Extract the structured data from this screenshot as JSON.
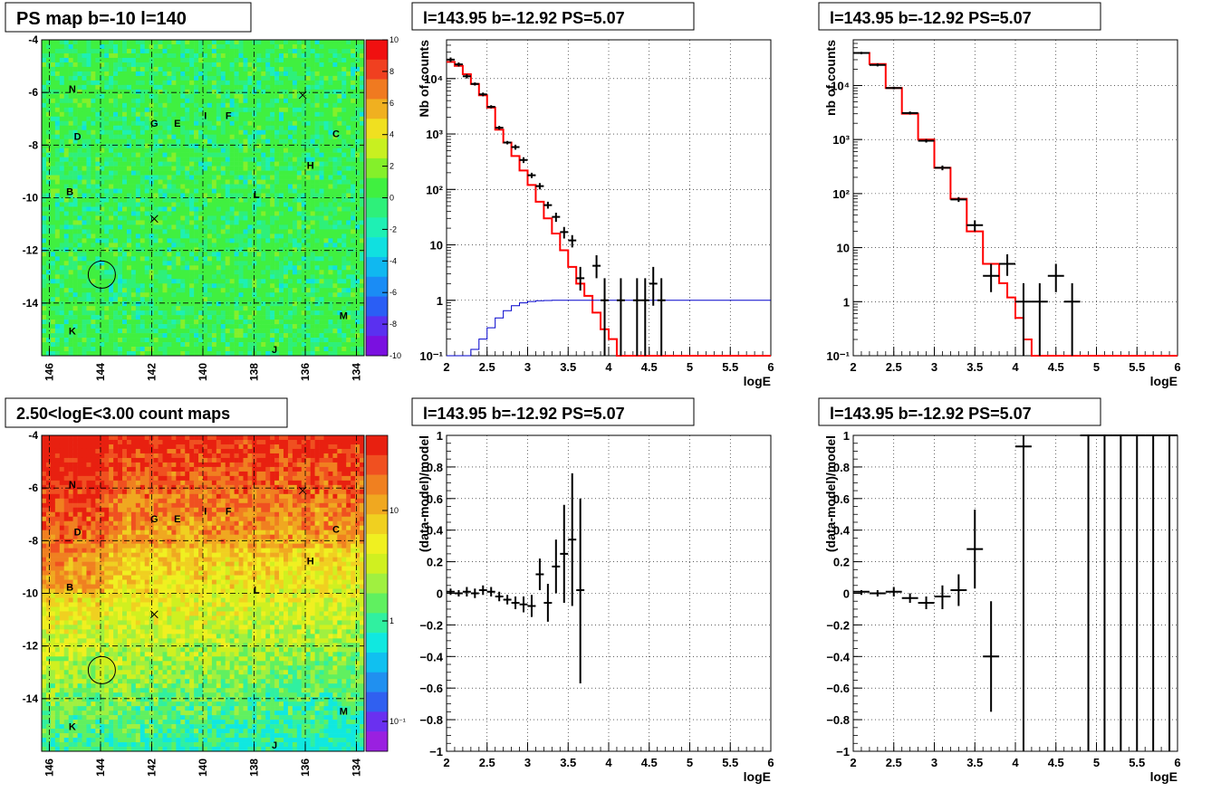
{
  "map_top": {
    "title": "PS map b=-10 l=140",
    "xticks": [
      146,
      144,
      142,
      140,
      138,
      136,
      134
    ],
    "yticks": [
      -4,
      -6,
      -8,
      -10,
      -12,
      -14
    ],
    "xlim": [
      146.3,
      133.7
    ],
    "ylim": [
      -16,
      -4
    ],
    "palette": "ps",
    "colorbar_ticks": [
      "10",
      "8",
      "6",
      "4",
      "2",
      "0",
      "-2",
      "-4",
      "-6",
      "-8",
      "-10"
    ],
    "labels": [
      {
        "t": "N",
        "l": 145.1,
        "b": -6.0
      },
      {
        "t": "D",
        "l": 144.9,
        "b": -7.8
      },
      {
        "t": "B",
        "l": 145.2,
        "b": -9.9
      },
      {
        "t": "K",
        "l": 145.1,
        "b": -15.2
      },
      {
        "t": "G",
        "l": 141.9,
        "b": -7.3
      },
      {
        "t": "E",
        "l": 141.0,
        "b": -7.3
      },
      {
        "t": "I",
        "l": 139.9,
        "b": -7.0
      },
      {
        "t": "F",
        "l": 139.0,
        "b": -7.0
      },
      {
        "t": "C",
        "l": 134.8,
        "b": -7.7
      },
      {
        "t": "H",
        "l": 135.8,
        "b": -8.9
      },
      {
        "t": "L",
        "l": 137.9,
        "b": -10.0
      },
      {
        "t": "M",
        "l": 134.5,
        "b": -14.6
      },
      {
        "t": "J",
        "l": 137.2,
        "b": -15.9
      }
    ],
    "crosses": [
      {
        "l": 136.1,
        "b": -6.1
      },
      {
        "l": 141.9,
        "b": -10.8
      }
    ],
    "circle": {
      "l": 143.95,
      "b": -12.92
    }
  },
  "map_bottom": {
    "title": "2.50<logE<3.00 count maps",
    "xticks": [
      146,
      144,
      142,
      140,
      138,
      136,
      134
    ],
    "yticks": [
      -4,
      -6,
      -8,
      -10,
      -12,
      -14
    ],
    "xlim": [
      146.3,
      133.7
    ],
    "ylim": [
      -16,
      -4
    ],
    "palette": "counts",
    "colorbar_ticks": [
      "10",
      "1",
      "10⁻¹"
    ],
    "labels": [
      {
        "t": "N",
        "l": 145.1,
        "b": -6.0
      },
      {
        "t": "D",
        "l": 144.9,
        "b": -7.8
      },
      {
        "t": "B",
        "l": 145.2,
        "b": -9.9
      },
      {
        "t": "K",
        "l": 145.1,
        "b": -15.2
      },
      {
        "t": "G",
        "l": 141.9,
        "b": -7.3
      },
      {
        "t": "E",
        "l": 141.0,
        "b": -7.3
      },
      {
        "t": "I",
        "l": 139.9,
        "b": -7.0
      },
      {
        "t": "F",
        "l": 139.0,
        "b": -7.0
      },
      {
        "t": "C",
        "l": 134.8,
        "b": -7.7
      },
      {
        "t": "H",
        "l": 135.8,
        "b": -8.9
      },
      {
        "t": "L",
        "l": 137.9,
        "b": -10.0
      },
      {
        "t": "M",
        "l": 134.5,
        "b": -14.6
      },
      {
        "t": "J",
        "l": 137.2,
        "b": -15.9
      }
    ],
    "crosses": [
      {
        "l": 136.1,
        "b": -6.1
      },
      {
        "l": 141.9,
        "b": -10.8
      }
    ],
    "circle": {
      "l": 143.95,
      "b": -12.92
    }
  },
  "chart_data": [
    {
      "type": "line",
      "title": "l=143.95 b=-12.92 PS=5.07",
      "xlabel": "logE",
      "ylabel": "Nb of counts",
      "log_y": true,
      "grid": true,
      "xlim": [
        2,
        6
      ],
      "ylim": [
        0.1,
        50000
      ],
      "xticks": [
        2,
        2.5,
        3,
        3.5,
        4,
        4.5,
        5,
        5.5,
        6
      ],
      "xtick_labels": [
        "2",
        "2.5",
        "3",
        "3.5",
        "4",
        "4.5",
        "5",
        "5.5",
        "6"
      ],
      "yticks": [
        0.1,
        1,
        10,
        100,
        1000,
        10000
      ],
      "ytick_labels": [
        "10⁻¹",
        "1",
        "10",
        "10²",
        "10³",
        "10⁴"
      ],
      "series": [
        {
          "style": "step",
          "color": "#ff0000",
          "edges": [
            2.0,
            2.1,
            2.2,
            2.3,
            2.4,
            2.5,
            2.6,
            2.7,
            2.8,
            2.9,
            3.0,
            3.1,
            3.2,
            3.3,
            3.4,
            3.5,
            3.6,
            3.7,
            3.8,
            3.9,
            4.0,
            4.1,
            4.2,
            6.0
          ],
          "values": [
            20000,
            17000,
            12000,
            8000,
            5000,
            3000,
            1200,
            700,
            400,
            220,
            120,
            60,
            30,
            16,
            8,
            4,
            2,
            1.2,
            0.6,
            0.3,
            0.2,
            0.1,
            0.1
          ]
        },
        {
          "style": "step",
          "color": "#0000cc",
          "edges": [
            2.0,
            2.3,
            2.4,
            2.5,
            2.6,
            2.7,
            2.8,
            2.9,
            3.0,
            3.1,
            3.2,
            3.3,
            6.0
          ],
          "values": [
            0.1,
            0.13,
            0.2,
            0.32,
            0.48,
            0.65,
            0.8,
            0.9,
            0.95,
            0.98,
            0.99,
            1.0
          ]
        },
        {
          "style": "points",
          "color": "#000000",
          "xerr": 0.05,
          "points": [
            [
              2.05,
              22000,
              20000,
              24000
            ],
            [
              2.15,
              18000,
              16500,
              19500
            ],
            [
              2.25,
              11000,
              10000,
              12000
            ],
            [
              2.35,
              8000,
              7500,
              8500
            ],
            [
              2.45,
              5200,
              4800,
              5600
            ],
            [
              2.55,
              3100,
              2900,
              3300
            ],
            [
              2.65,
              1300,
              1200,
              1400
            ],
            [
              2.75,
              700,
              650,
              750
            ],
            [
              2.85,
              580,
              520,
              640
            ],
            [
              2.95,
              340,
              300,
              380
            ],
            [
              3.05,
              180,
              160,
              200
            ],
            [
              3.15,
              115,
              100,
              130
            ],
            [
              3.25,
              52,
              45,
              60
            ],
            [
              3.35,
              32,
              26,
              38
            ],
            [
              3.45,
              17,
              13,
              21
            ],
            [
              3.55,
              12,
              9,
              15
            ],
            [
              3.65,
              2.5,
              1.5,
              4
            ],
            [
              3.85,
              4.2,
              2.5,
              6.5
            ],
            [
              3.95,
              1,
              0.1,
              2.5
            ],
            [
              4.15,
              1,
              0.1,
              2.5
            ],
            [
              4.35,
              1,
              0.1,
              2.5
            ],
            [
              4.45,
              1,
              0.1,
              2.5
            ],
            [
              4.55,
              2,
              0.8,
              4
            ],
            [
              4.65,
              1,
              0.1,
              2.5
            ]
          ]
        }
      ]
    },
    {
      "type": "line",
      "title": "l=143.95 b=-12.92 PS=5.07",
      "xlabel": "logE",
      "ylabel": "nb of counts",
      "log_y": true,
      "grid": true,
      "xlim": [
        2,
        6
      ],
      "ylim": [
        0.1,
        70000
      ],
      "xticks": [
        2,
        2.5,
        3,
        3.5,
        4,
        4.5,
        5,
        5.5,
        6
      ],
      "xtick_labels": [
        "2",
        "2.5",
        "3",
        "3.5",
        "4",
        "4.5",
        "5",
        "5.5",
        "6"
      ],
      "yticks": [
        0.1,
        1,
        10,
        100,
        1000,
        10000
      ],
      "ytick_labels": [
        "10⁻¹",
        "1",
        "10",
        "10²",
        "10³",
        "10⁴"
      ],
      "series": [
        {
          "style": "step",
          "color": "#ff0000",
          "edges": [
            2.0,
            2.2,
            2.4,
            2.6,
            2.8,
            3.0,
            3.2,
            3.4,
            3.6,
            3.8,
            3.9,
            4.0,
            4.1,
            4.2,
            6.0
          ],
          "values": [
            40000,
            25000,
            9000,
            3000,
            1000,
            300,
            80,
            20,
            5,
            2.2,
            1.2,
            0.5,
            0.2,
            0.1
          ]
        },
        {
          "style": "points",
          "color": "#000000",
          "xerr": 0.1,
          "points": [
            [
              2.1,
              40000,
              38000,
              42000
            ],
            [
              2.3,
              24000,
              22500,
              25500
            ],
            [
              2.5,
              9000,
              8500,
              9500
            ],
            [
              2.7,
              3100,
              2900,
              3300
            ],
            [
              2.9,
              950,
              880,
              1020
            ],
            [
              3.1,
              300,
              270,
              330
            ],
            [
              3.3,
              78,
              70,
              86
            ],
            [
              3.5,
              26,
              20,
              32
            ],
            [
              3.7,
              3,
              1.5,
              5
            ],
            [
              3.9,
              5,
              3,
              7.5
            ],
            [
              4.1,
              1,
              0.1,
              2.2
            ],
            [
              4.3,
              1,
              0.1,
              2.2
            ],
            [
              4.5,
              3,
              1.5,
              5
            ],
            [
              4.7,
              1,
              0.1,
              2.2
            ]
          ]
        }
      ]
    },
    {
      "type": "scatter",
      "title": "l=143.95 b=-12.92 PS=5.07",
      "xlabel": "logE",
      "ylabel": "(data-model)/model",
      "log_y": false,
      "grid": true,
      "xlim": [
        2,
        6
      ],
      "ylim": [
        -1,
        1
      ],
      "xticks": [
        2,
        2.5,
        3,
        3.5,
        4,
        4.5,
        5,
        5.5,
        6
      ],
      "xtick_labels": [
        "2",
        "2.5",
        "3",
        "3.5",
        "4",
        "4.5",
        "5",
        "5.5",
        "6"
      ],
      "yticks": [
        -1,
        -0.8,
        -0.6,
        -0.4,
        -0.2,
        0,
        0.2,
        0.4,
        0.6,
        0.8,
        1
      ],
      "ytick_labels": [
        "−1",
        "−0.8",
        "−0.6",
        "−0.4",
        "−0.2",
        "0",
        "0.2",
        "0.4",
        "0.6",
        "0.8",
        "1"
      ],
      "series": [
        {
          "style": "points",
          "color": "#000000",
          "xerr": 0.05,
          "points": [
            [
              2.05,
              0.01,
              -0.01,
              0.03
            ],
            [
              2.15,
              0.0,
              -0.02,
              0.02
            ],
            [
              2.25,
              0.01,
              -0.02,
              0.04
            ],
            [
              2.35,
              0.0,
              -0.03,
              0.03
            ],
            [
              2.45,
              0.02,
              -0.01,
              0.05
            ],
            [
              2.55,
              0.01,
              -0.02,
              0.04
            ],
            [
              2.65,
              -0.02,
              -0.05,
              0.01
            ],
            [
              2.75,
              -0.04,
              -0.07,
              -0.01
            ],
            [
              2.85,
              -0.06,
              -0.1,
              -0.02
            ],
            [
              2.95,
              -0.07,
              -0.12,
              -0.02
            ],
            [
              3.05,
              -0.08,
              -0.15,
              -0.01
            ],
            [
              3.15,
              0.12,
              0.02,
              0.22
            ],
            [
              3.25,
              -0.06,
              -0.18,
              0.06
            ],
            [
              3.35,
              0.17,
              0.0,
              0.34
            ],
            [
              3.45,
              0.25,
              -0.06,
              0.56
            ],
            [
              3.55,
              0.34,
              -0.08,
              0.76
            ],
            [
              3.65,
              0.02,
              -0.57,
              0.6
            ]
          ]
        }
      ]
    },
    {
      "type": "scatter",
      "title": "l=143.95 b=-12.92 PS=5.07",
      "xlabel": "logE",
      "ylabel": "(data-model)/model",
      "log_y": false,
      "grid": true,
      "xlim": [
        2,
        6
      ],
      "ylim": [
        -1,
        1
      ],
      "xticks": [
        2,
        2.5,
        3,
        3.5,
        4,
        4.5,
        5,
        5.5,
        6
      ],
      "xtick_labels": [
        "2",
        "2.5",
        "3",
        "3.5",
        "4",
        "4.5",
        "5",
        "5.5",
        "6"
      ],
      "yticks": [
        -1,
        -0.8,
        -0.6,
        -0.4,
        -0.2,
        0,
        0.2,
        0.4,
        0.6,
        0.8,
        1
      ],
      "ytick_labels": [
        "−1",
        "−0.8",
        "−0.6",
        "−0.4",
        "−0.2",
        "0",
        "0.2",
        "0.4",
        "0.6",
        "0.8",
        "1"
      ],
      "series": [
        {
          "style": "points",
          "color": "#000000",
          "xerr": 0.1,
          "points": [
            [
              2.1,
              0.01,
              -0.01,
              0.02
            ],
            [
              2.3,
              0.0,
              -0.02,
              0.02
            ],
            [
              2.5,
              0.01,
              -0.02,
              0.04
            ],
            [
              2.7,
              -0.03,
              -0.06,
              0.0
            ],
            [
              2.9,
              -0.06,
              -0.1,
              -0.02
            ],
            [
              3.1,
              -0.02,
              -0.1,
              0.05
            ],
            [
              3.3,
              0.02,
              -0.08,
              0.12
            ],
            [
              3.5,
              0.28,
              0.03,
              0.53
            ],
            [
              3.7,
              -0.4,
              -0.75,
              -0.05
            ],
            [
              4.1,
              0.93,
              -1,
              1
            ],
            [
              4.9,
              1,
              -1,
              1
            ],
            [
              5.1,
              1,
              -1,
              1
            ],
            [
              5.3,
              1,
              -1,
              1
            ],
            [
              5.5,
              1,
              -1,
              1
            ],
            [
              5.7,
              1,
              -1,
              1
            ],
            [
              5.9,
              1,
              -1,
              1
            ]
          ]
        }
      ]
    }
  ]
}
